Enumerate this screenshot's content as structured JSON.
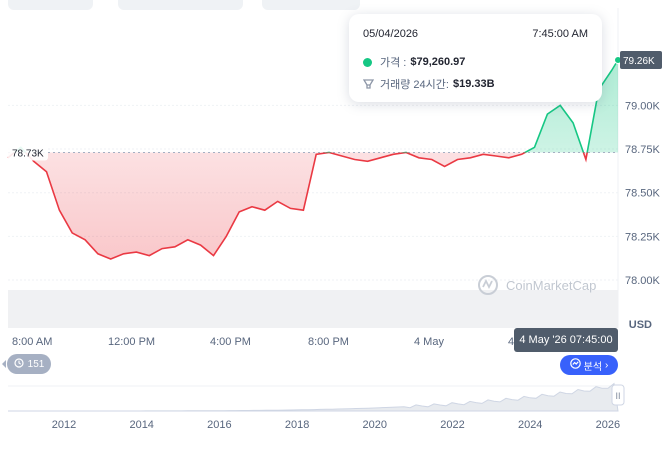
{
  "tooltip": {
    "date": "05/04/2026",
    "time": "7:45:00 AM",
    "price_label": "가격 :",
    "price_value": "$79,260.97",
    "volume_label": "거래량 24시간:",
    "volume_value": "$19.33B"
  },
  "watermark": "CoinMarketCap",
  "currency_label": "USD",
  "hover_label": "4 May '26 07:45:00",
  "analysis_button": "분석",
  "history_count": "151",
  "colors": {
    "up": "#16c784",
    "down": "#ea3943",
    "grid": "#eff2f5",
    "text": "#58667e",
    "accent": "#3861fb"
  },
  "chart_data": {
    "type": "area",
    "baseline": 78730,
    "baseline_label": "78.73K",
    "current_label": "79.26K",
    "ylim": [
      77950,
      79400
    ],
    "yticks": [
      {
        "value": 79000,
        "label": "79.00K"
      },
      {
        "value": 78750,
        "label": "78.75K"
      },
      {
        "value": 78500,
        "label": "78.50K"
      },
      {
        "value": 78250,
        "label": "78.25K"
      },
      {
        "value": 78000,
        "label": "78.00K"
      }
    ],
    "xticks": [
      "8:00 AM",
      "12:00 PM",
      "4:00 PM",
      "8:00 PM",
      "4 May",
      "4"
    ],
    "x_hours": [
      0,
      0.5,
      1,
      1.5,
      2,
      2.5,
      3,
      3.5,
      4,
      4.5,
      5,
      5.5,
      6,
      6.5,
      7,
      7.5,
      8,
      8.5,
      9,
      9.5,
      10,
      10.5,
      11,
      11.5,
      12,
      12.5,
      13,
      13.5,
      14,
      14.5,
      15,
      15.5,
      16,
      16.5,
      17,
      17.5,
      18,
      18.5,
      19,
      19.5,
      20,
      20.5,
      21,
      21.5,
      22,
      22.5,
      23,
      23.5,
      23.75
    ],
    "values": [
      78700,
      78760,
      78680,
      78620,
      78400,
      78270,
      78230,
      78150,
      78120,
      78150,
      78160,
      78140,
      78180,
      78190,
      78230,
      78200,
      78140,
      78250,
      78390,
      78420,
      78400,
      78450,
      78410,
      78400,
      78720,
      78730,
      78710,
      78690,
      78680,
      78700,
      78720,
      78730,
      78700,
      78690,
      78650,
      78690,
      78700,
      78720,
      78710,
      78700,
      78720,
      78760,
      78950,
      79000,
      78900,
      78690,
      79090,
      79200,
      79260
    ],
    "navigator": {
      "years": [
        "2012",
        "2014",
        "2016",
        "2018",
        "2020",
        "2022",
        "2024",
        "2026"
      ],
      "handle_label": "II"
    }
  }
}
